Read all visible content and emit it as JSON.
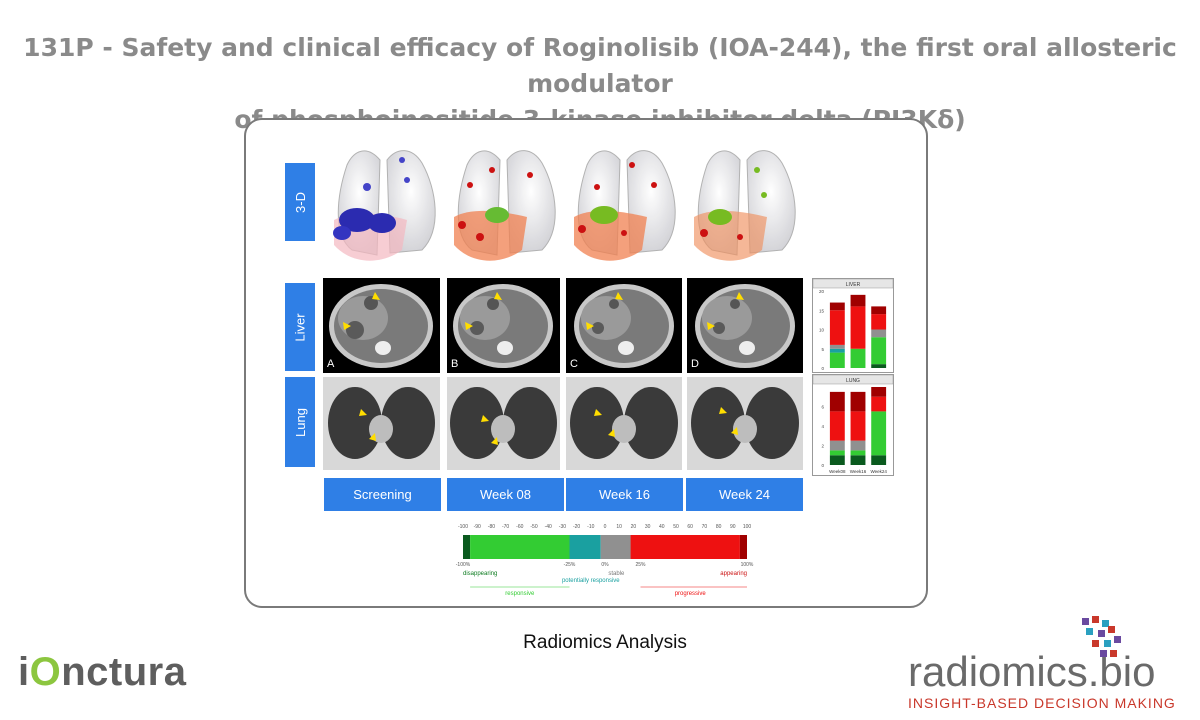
{
  "title": {
    "line1": "131P - Safety and clinical efficacy of Roginolisib (IOA-244), the first oral allosteric modulator",
    "line2": "of phosphoinositide 3-kinase inhibitor delta (PI3Kδ)"
  },
  "row_labels": [
    "3-D",
    "Liver",
    "Lung"
  ],
  "panel_letters": [
    "A",
    "B",
    "C",
    "D"
  ],
  "timepoints": [
    "Screening",
    "Week 08",
    "Week 16",
    "Week 24"
  ],
  "caption": "Radiomics Analysis",
  "logos": {
    "left": {
      "text_pre": "i",
      "text_mark": "O",
      "text_post": "nctura"
    },
    "right": {
      "name": "radiomics.bio",
      "tagline": "INSIGHT-BASED DECISION MAKING"
    }
  },
  "colors": {
    "blue_label": "#2f7fe6",
    "dark_green": "#0a5a1e",
    "green": "#33cc33",
    "teal": "#1aa0a0",
    "grey": "#909090",
    "red": "#ee1111",
    "dark_red": "#a00000"
  },
  "chart_data": [
    {
      "type": "bar",
      "title": "LIVER",
      "categories": [
        "",
        "",
        ""
      ],
      "ylim": [
        0,
        20
      ],
      "yticks": [
        "0",
        "5",
        "10",
        "15",
        "20"
      ],
      "series": [
        {
          "values": [
            0,
            0,
            1
          ]
        },
        {
          "values": [
            4,
            5,
            7
          ]
        },
        {
          "values": [
            1,
            0,
            0
          ]
        },
        {
          "values": [
            1,
            0,
            2
          ]
        },
        {
          "values": [
            9,
            11,
            4
          ]
        },
        {
          "values": [
            2,
            3,
            2
          ]
        }
      ]
    },
    {
      "type": "bar",
      "title": "LUNG",
      "categories": [
        "Week08",
        "Week16",
        "Week24"
      ],
      "ylim": [
        0,
        8
      ],
      "yticks": [
        "0",
        "2",
        "4",
        "6"
      ],
      "series": [
        {
          "values": [
            1,
            1,
            1
          ]
        },
        {
          "values": [
            0.5,
            0.5,
            4.5
          ]
        },
        {
          "values": [
            0,
            0,
            0
          ]
        },
        {
          "values": [
            1,
            1,
            0
          ]
        },
        {
          "values": [
            3,
            3,
            1.5
          ]
        },
        {
          "values": [
            2,
            2,
            1
          ]
        }
      ]
    }
  ],
  "scale": {
    "ticks": [
      "-100",
      "-90",
      "-80",
      "-70",
      "-60",
      "-50",
      "-40",
      "-30",
      "-20",
      "-10",
      "0",
      "10",
      "20",
      "30",
      "40",
      "50",
      "60",
      "70",
      "80",
      "90",
      "100"
    ],
    "thresholds": [
      "-100%",
      "-25%",
      "0%",
      "25%",
      "100%"
    ],
    "labels": {
      "disappearing": "disappearing",
      "potentially_responsive": "potentially responsive",
      "stable": "stable",
      "appearing": "appearing",
      "responsive": "responsive",
      "progressive": "progressive"
    }
  }
}
